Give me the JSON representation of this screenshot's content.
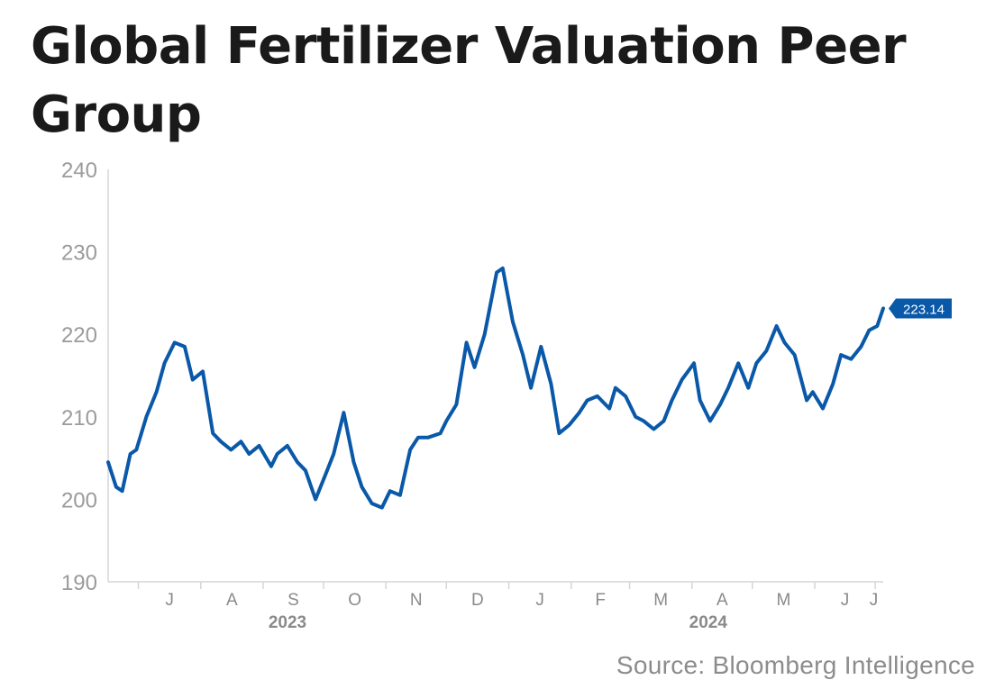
{
  "chart_data": {
    "type": "line",
    "title": "Global Fertilizer Valuation Peer Group",
    "xlabel": "",
    "ylabel": "",
    "ylim": [
      190,
      240
    ],
    "yticks": [
      "190",
      "200",
      "210",
      "220",
      "230",
      "240"
    ],
    "month_ticks": [
      "J",
      "A",
      "S",
      "O",
      "N",
      "D",
      "J",
      "F",
      "M",
      "A",
      "M",
      "J",
      "J"
    ],
    "year_labels": [
      "2023",
      "2024"
    ],
    "grid": false,
    "last_value_label": "223.14",
    "color": "#0a58a8",
    "series": [
      {
        "x": [
          "2023-06-16",
          "2023-06-20",
          "2023-06-23",
          "2023-06-27",
          "2023-06-30",
          "2023-07-05",
          "2023-07-10",
          "2023-07-14",
          "2023-07-19",
          "2023-07-24",
          "2023-07-28",
          "2023-08-02",
          "2023-08-07",
          "2023-08-11",
          "2023-08-16",
          "2023-08-21",
          "2023-08-25",
          "2023-08-30",
          "2023-09-05",
          "2023-09-08",
          "2023-09-13",
          "2023-09-18",
          "2023-09-22",
          "2023-09-27",
          "2023-10-02",
          "2023-10-06",
          "2023-10-11",
          "2023-10-16",
          "2023-10-20",
          "2023-10-25",
          "2023-10-30",
          "2023-11-03",
          "2023-11-08",
          "2023-11-13",
          "2023-11-17",
          "2023-11-22",
          "2023-11-28",
          "2023-12-01",
          "2023-12-06",
          "2023-12-11",
          "2023-12-15",
          "2023-12-20",
          "2023-12-26",
          "2023-12-29",
          "2024-01-03",
          "2024-01-08",
          "2024-01-12",
          "2024-01-17",
          "2024-01-22",
          "2024-01-26",
          "2024-01-31",
          "2024-02-05",
          "2024-02-09",
          "2024-02-14",
          "2024-02-20",
          "2024-02-23",
          "2024-02-28",
          "2024-03-04",
          "2024-03-08",
          "2024-03-13",
          "2024-03-18",
          "2024-03-22",
          "2024-03-27",
          "2024-04-02",
          "2024-04-05",
          "2024-04-10",
          "2024-04-15",
          "2024-04-19",
          "2024-04-24",
          "2024-04-29",
          "2024-05-03",
          "2024-05-08",
          "2024-05-13",
          "2024-05-17",
          "2024-05-22",
          "2024-05-28",
          "2024-05-31",
          "2024-06-05",
          "2024-06-10",
          "2024-06-14",
          "2024-06-19",
          "2024-06-24",
          "2024-06-28",
          "2024-07-02",
          "2024-07-05"
        ],
        "values": [
          204.5,
          201.5,
          201.0,
          205.5,
          206.0,
          210.0,
          213.0,
          216.5,
          219.0,
          218.5,
          214.5,
          215.5,
          208.0,
          207.0,
          206.0,
          207.0,
          205.5,
          206.5,
          204.0,
          205.5,
          206.5,
          204.5,
          203.5,
          200.0,
          203.0,
          205.5,
          210.5,
          204.5,
          201.5,
          199.5,
          199.0,
          201.0,
          200.5,
          206.0,
          207.5,
          207.5,
          208.0,
          209.5,
          211.5,
          219.0,
          216.0,
          220.0,
          227.5,
          228.0,
          221.5,
          217.5,
          213.5,
          218.5,
          214.0,
          208.0,
          209.0,
          210.5,
          212.0,
          212.5,
          211.0,
          213.5,
          212.5,
          210.0,
          209.5,
          208.5,
          209.5,
          212.0,
          214.5,
          216.5,
          212.0,
          209.5,
          211.5,
          213.5,
          216.5,
          213.5,
          216.5,
          218.0,
          221.0,
          219.0,
          217.5,
          212.0,
          213.0,
          211.0,
          214.0,
          217.5,
          217.0,
          218.5,
          220.5,
          221.0,
          223.14
        ]
      }
    ]
  },
  "source": "Source: Bloomberg Intelligence"
}
